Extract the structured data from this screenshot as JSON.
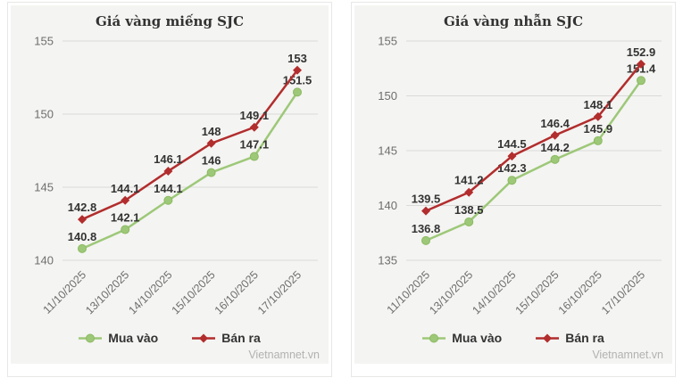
{
  "colors": {
    "buy": "#9dc878",
    "buy_stroke": "#8cba62",
    "sell": "#b22d2d",
    "grid": "#dadad8",
    "tick": "#6e6e6e",
    "label": "#333333",
    "panel_bg": "#f4f4f2",
    "card_border": "#e7e7e5",
    "watermark": "#b2b2b2"
  },
  "chart_data": [
    {
      "type": "line",
      "title": "Giá vàng miếng SJC",
      "categories": [
        "11/10/2025",
        "13/10/2025",
        "14/10/2025",
        "15/10/2025",
        "16/10/2025",
        "17/10/2025"
      ],
      "series": [
        {
          "name": "Mua vào",
          "color_key": "buy",
          "marker": "circle",
          "values": [
            140.8,
            142.1,
            144.1,
            146,
            147.1,
            151.5
          ]
        },
        {
          "name": "Bán ra",
          "color_key": "sell",
          "marker": "diamond",
          "values": [
            142.8,
            144.1,
            146.1,
            148,
            149.1,
            153
          ]
        }
      ],
      "yticks": [
        140,
        145,
        150,
        155
      ],
      "ylim": [
        140,
        155
      ],
      "grid": true,
      "legend_position": "bottom",
      "watermark": "Vietnamnet.vn"
    },
    {
      "type": "line",
      "title": "Giá vàng nhẫn SJC",
      "categories": [
        "11/10/2025",
        "13/10/2025",
        "14/10/2025",
        "15/10/2025",
        "16/10/2025",
        "17/10/2025"
      ],
      "series": [
        {
          "name": "Mua vào",
          "color_key": "buy",
          "marker": "circle",
          "values": [
            136.8,
            138.5,
            142.3,
            144.2,
            145.9,
            151.4
          ]
        },
        {
          "name": "Bán ra",
          "color_key": "sell",
          "marker": "diamond",
          "values": [
            139.5,
            141.2,
            144.5,
            146.4,
            148.1,
            152.9
          ]
        }
      ],
      "yticks": [
        135,
        140,
        145,
        150,
        155
      ],
      "ylim": [
        135,
        155
      ],
      "grid": true,
      "legend_position": "bottom",
      "watermark": "Vietnamnet.vn"
    }
  ]
}
